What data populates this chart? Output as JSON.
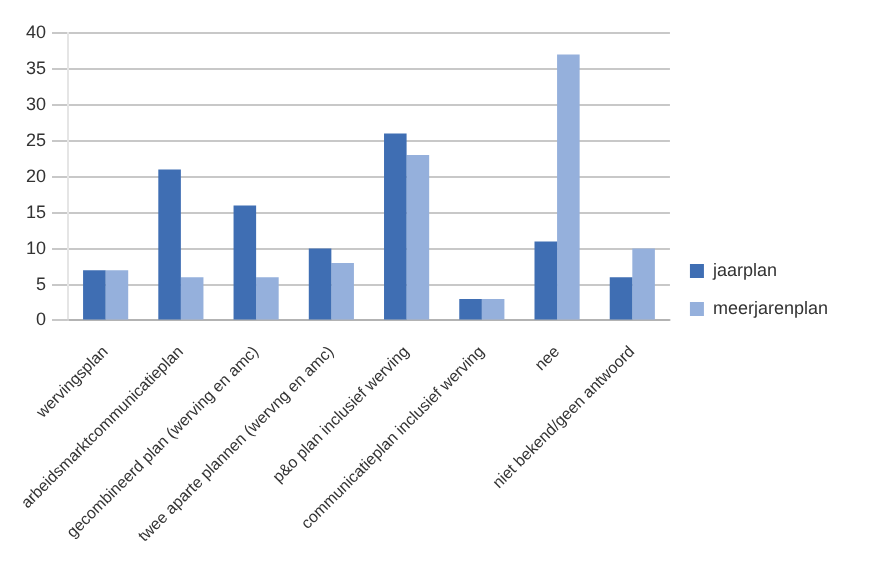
{
  "chart_data": {
    "type": "bar",
    "categories": [
      "wervingsplan",
      "arbeidsmarktcommunicatieplan",
      "gecombineerd plan (werving en amc)",
      "twee aparte plannen (wervng en amc)",
      "p&o plan inclusief werving",
      "communicatieplan inclusief werving",
      "nee",
      "niet bekend/geen antwoord"
    ],
    "series": [
      {
        "name": "jaarplan",
        "color": "#3f6eb3",
        "values": [
          7,
          21,
          16,
          10,
          26,
          3,
          11,
          6
        ]
      },
      {
        "name": "meerjarenplan",
        "color": "#95b0dc",
        "values": [
          7,
          6,
          6,
          8,
          23,
          3,
          37,
          10
        ]
      }
    ],
    "ylim": [
      0,
      40
    ],
    "yticks": [
      0,
      5,
      10,
      15,
      20,
      25,
      30,
      35,
      40
    ],
    "grid": "y",
    "legend": "right"
  }
}
